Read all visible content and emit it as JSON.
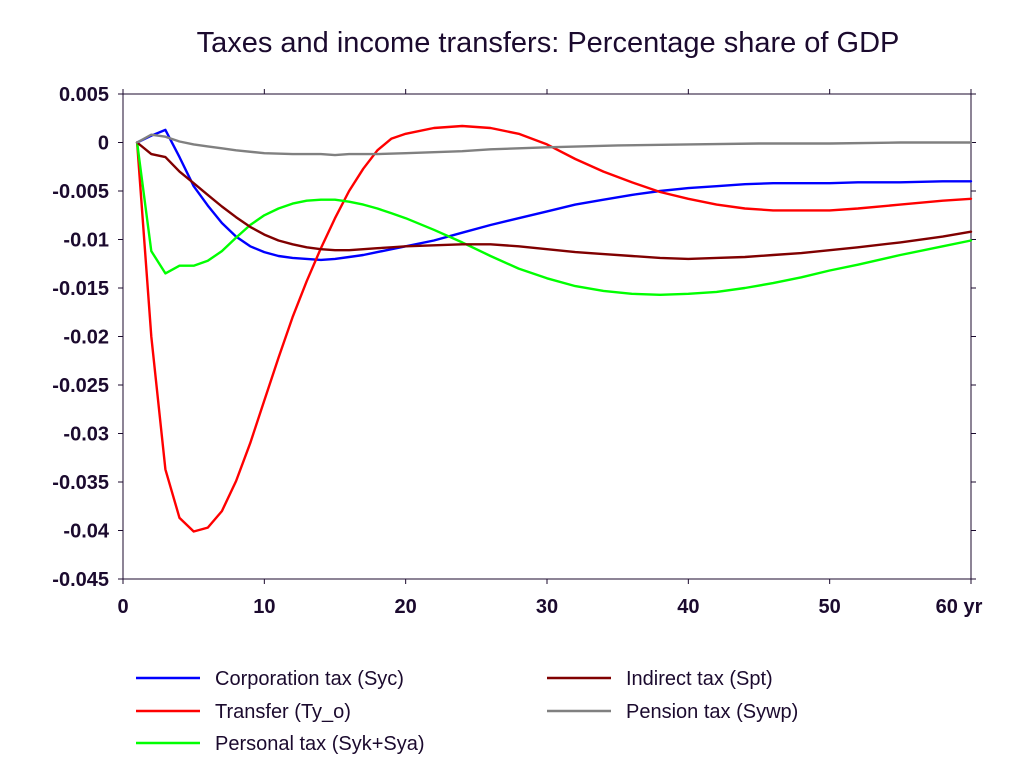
{
  "chart_data": {
    "type": "line",
    "title": "Taxes and income transfers: Percentage share of GDP",
    "xlabel": "",
    "ylabel": "",
    "x_unit_label": "yr",
    "xlim": [
      0,
      60
    ],
    "ylim": [
      -0.045,
      0.005
    ],
    "x_ticks": [
      0,
      10,
      20,
      30,
      40,
      50,
      60
    ],
    "x_tick_labels": [
      "0",
      "10",
      "20",
      "30",
      "40",
      "50",
      "60 yr"
    ],
    "y_ticks": [
      0.005,
      0,
      -0.005,
      -0.01,
      -0.015,
      -0.02,
      -0.025,
      -0.03,
      -0.035,
      -0.04,
      -0.045
    ],
    "y_tick_labels": [
      "0.005",
      "0",
      "-0.005",
      "-0.01",
      "-0.015",
      "-0.02",
      "-0.025",
      "-0.03",
      "-0.035",
      "-0.04",
      "-0.045"
    ],
    "grid": false,
    "legend_position": "bottom",
    "series": [
      {
        "name": "Corporation tax (Syc)",
        "color": "#0000ff",
        "points": [
          [
            1,
            0
          ],
          [
            2,
            0.0007
          ],
          [
            3,
            0.0013
          ],
          [
            4,
            -0.0015
          ],
          [
            5,
            -0.0045
          ],
          [
            6,
            -0.0065
          ],
          [
            7,
            -0.0083
          ],
          [
            8,
            -0.0097
          ],
          [
            9,
            -0.0107
          ],
          [
            10,
            -0.0113
          ],
          [
            11,
            -0.0117
          ],
          [
            12,
            -0.0119
          ],
          [
            13,
            -0.012
          ],
          [
            14,
            -0.0121
          ],
          [
            15,
            -0.012
          ],
          [
            16,
            -0.0118
          ],
          [
            17,
            -0.0116
          ],
          [
            18,
            -0.0113
          ],
          [
            19,
            -0.011
          ],
          [
            20,
            -0.0107
          ],
          [
            22,
            -0.0101
          ],
          [
            24,
            -0.0093
          ],
          [
            26,
            -0.0085
          ],
          [
            28,
            -0.0078
          ],
          [
            30,
            -0.0071
          ],
          [
            32,
            -0.0064
          ],
          [
            34,
            -0.0059
          ],
          [
            36,
            -0.0054
          ],
          [
            38,
            -0.005
          ],
          [
            40,
            -0.0047
          ],
          [
            42,
            -0.0045
          ],
          [
            44,
            -0.0043
          ],
          [
            46,
            -0.0042
          ],
          [
            48,
            -0.0042
          ],
          [
            50,
            -0.0042
          ],
          [
            52,
            -0.0041
          ],
          [
            55,
            -0.0041
          ],
          [
            58,
            -0.004
          ],
          [
            60,
            -0.004
          ]
        ]
      },
      {
        "name": "Transfer (Ty_o)",
        "color": "#ff0000",
        "points": [
          [
            1,
            0
          ],
          [
            2,
            -0.02
          ],
          [
            3,
            -0.0337
          ],
          [
            4,
            -0.0387
          ],
          [
            5,
            -0.0401
          ],
          [
            6,
            -0.0397
          ],
          [
            7,
            -0.038
          ],
          [
            8,
            -0.0349
          ],
          [
            9,
            -0.031
          ],
          [
            10,
            -0.0266
          ],
          [
            11,
            -0.0222
          ],
          [
            12,
            -0.018
          ],
          [
            13,
            -0.0143
          ],
          [
            14,
            -0.0109
          ],
          [
            15,
            -0.0078
          ],
          [
            16,
            -0.005
          ],
          [
            17,
            -0.0027
          ],
          [
            18,
            -0.0008
          ],
          [
            19,
            0.0004
          ],
          [
            20,
            0.0009
          ],
          [
            22,
            0.0015
          ],
          [
            24,
            0.0017
          ],
          [
            26,
            0.0015
          ],
          [
            28,
            0.0009
          ],
          [
            30,
            -0.0002
          ],
          [
            32,
            -0.0017
          ],
          [
            34,
            -0.003
          ],
          [
            36,
            -0.0041
          ],
          [
            38,
            -0.0051
          ],
          [
            40,
            -0.0058
          ],
          [
            42,
            -0.0064
          ],
          [
            44,
            -0.0068
          ],
          [
            46,
            -0.007
          ],
          [
            48,
            -0.007
          ],
          [
            50,
            -0.007
          ],
          [
            52,
            -0.0068
          ],
          [
            55,
            -0.0064
          ],
          [
            58,
            -0.006
          ],
          [
            60,
            -0.0058
          ]
        ]
      },
      {
        "name": "Personal tax (Syk+Sya)",
        "color": "#00ff00",
        "points": [
          [
            1,
            0
          ],
          [
            2,
            -0.0112
          ],
          [
            3,
            -0.0135
          ],
          [
            4,
            -0.0127
          ],
          [
            5,
            -0.0127
          ],
          [
            6,
            -0.0122
          ],
          [
            7,
            -0.0112
          ],
          [
            8,
            -0.0098
          ],
          [
            9,
            -0.0085
          ],
          [
            10,
            -0.0075
          ],
          [
            11,
            -0.0068
          ],
          [
            12,
            -0.0063
          ],
          [
            13,
            -0.006
          ],
          [
            14,
            -0.0059
          ],
          [
            15,
            -0.0059
          ],
          [
            16,
            -0.0061
          ],
          [
            17,
            -0.0064
          ],
          [
            18,
            -0.0068
          ],
          [
            19,
            -0.0073
          ],
          [
            20,
            -0.0078
          ],
          [
            22,
            -0.009
          ],
          [
            24,
            -0.0103
          ],
          [
            26,
            -0.0117
          ],
          [
            28,
            -0.013
          ],
          [
            30,
            -0.014
          ],
          [
            32,
            -0.0148
          ],
          [
            34,
            -0.0153
          ],
          [
            36,
            -0.0156
          ],
          [
            38,
            -0.0157
          ],
          [
            40,
            -0.0156
          ],
          [
            42,
            -0.0154
          ],
          [
            44,
            -0.015
          ],
          [
            46,
            -0.0145
          ],
          [
            48,
            -0.0139
          ],
          [
            50,
            -0.0132
          ],
          [
            52,
            -0.0126
          ],
          [
            55,
            -0.0116
          ],
          [
            58,
            -0.0107
          ],
          [
            60,
            -0.0101
          ]
        ]
      },
      {
        "name": "Indirect tax (Spt)",
        "color": "#800000",
        "points": [
          [
            1,
            0
          ],
          [
            2,
            -0.0012
          ],
          [
            3,
            -0.0015
          ],
          [
            4,
            -0.003
          ],
          [
            5,
            -0.0042
          ],
          [
            6,
            -0.0054
          ],
          [
            7,
            -0.0066
          ],
          [
            8,
            -0.0077
          ],
          [
            9,
            -0.0087
          ],
          [
            10,
            -0.0095
          ],
          [
            11,
            -0.0101
          ],
          [
            12,
            -0.0105
          ],
          [
            13,
            -0.0108
          ],
          [
            14,
            -0.011
          ],
          [
            15,
            -0.0111
          ],
          [
            16,
            -0.0111
          ],
          [
            17,
            -0.011
          ],
          [
            18,
            -0.0109
          ],
          [
            19,
            -0.0108
          ],
          [
            20,
            -0.0107
          ],
          [
            22,
            -0.0106
          ],
          [
            24,
            -0.0105
          ],
          [
            26,
            -0.0105
          ],
          [
            28,
            -0.0107
          ],
          [
            30,
            -0.011
          ],
          [
            32,
            -0.0113
          ],
          [
            34,
            -0.0115
          ],
          [
            36,
            -0.0117
          ],
          [
            38,
            -0.0119
          ],
          [
            40,
            -0.012
          ],
          [
            42,
            -0.0119
          ],
          [
            44,
            -0.0118
          ],
          [
            46,
            -0.0116
          ],
          [
            48,
            -0.0114
          ],
          [
            50,
            -0.0111
          ],
          [
            52,
            -0.0108
          ],
          [
            55,
            -0.0103
          ],
          [
            58,
            -0.0097
          ],
          [
            60,
            -0.0092
          ]
        ]
      },
      {
        "name": "Pension tax (Sywp)",
        "color": "#808080",
        "points": [
          [
            1,
            0
          ],
          [
            2,
            0.0008
          ],
          [
            3,
            0.0006
          ],
          [
            4,
            0.0001
          ],
          [
            5,
            -0.0002
          ],
          [
            6,
            -0.0004
          ],
          [
            7,
            -0.0006
          ],
          [
            8,
            -0.0008
          ],
          [
            10,
            -0.0011
          ],
          [
            12,
            -0.0012
          ],
          [
            14,
            -0.0012
          ],
          [
            15,
            -0.0013
          ],
          [
            16,
            -0.0012
          ],
          [
            18,
            -0.0012
          ],
          [
            20,
            -0.0011
          ],
          [
            22,
            -0.001
          ],
          [
            24,
            -0.0009
          ],
          [
            26,
            -0.0007
          ],
          [
            28,
            -0.0006
          ],
          [
            30,
            -0.0005
          ],
          [
            35,
            -0.0003
          ],
          [
            40,
            -0.0002
          ],
          [
            45,
            -0.0001
          ],
          [
            50,
            -0.0001
          ],
          [
            55,
            0
          ],
          [
            60,
            0
          ]
        ]
      }
    ]
  }
}
